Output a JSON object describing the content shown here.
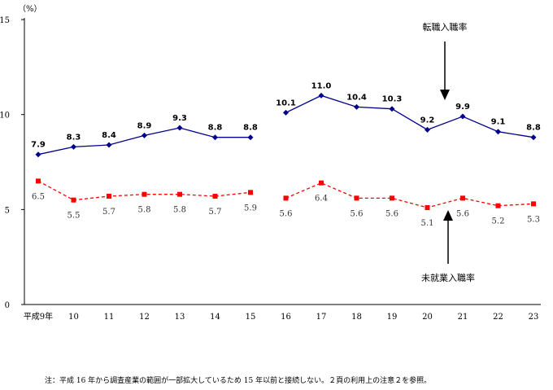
{
  "chart_data": {
    "type": "line",
    "unit_label": "（%）",
    "ylim": [
      0,
      15
    ],
    "y_ticks": [
      0,
      5,
      10,
      15
    ],
    "categories": [
      "平成9年",
      "10",
      "11",
      "12",
      "13",
      "14",
      "15",
      "16",
      "17",
      "18",
      "19",
      "20",
      "21",
      "22",
      "23"
    ],
    "series": [
      {
        "name": "転職入職率",
        "color": "#00008b",
        "line_style": "solid",
        "marker": "diamond",
        "label_style": "bold",
        "segments": [
          {
            "values": [
              7.9,
              8.3,
              8.4,
              8.9,
              9.3,
              8.8,
              8.8
            ]
          },
          {
            "values": [
              10.1,
              11.0,
              10.4,
              10.3,
              9.2,
              9.9,
              9.1,
              8.8
            ]
          }
        ],
        "labels": [
          "7.9",
          "8.3",
          "8.4",
          "8.9",
          "9.3",
          "8.8",
          "8.8",
          "10.1",
          "11.0",
          "10.4",
          "10.3",
          "9.2",
          "9.9",
          "9.1",
          "8.8"
        ]
      },
      {
        "name": "未就業入職率",
        "color": "#ff0000",
        "line_style": "dashed",
        "marker": "square",
        "label_style": "plain",
        "segments": [
          {
            "values": [
              6.5,
              5.5,
              5.7,
              5.8,
              5.8,
              5.7,
              5.9
            ]
          },
          {
            "values": [
              5.6,
              6.4,
              5.6,
              5.6,
              5.1,
              5.6,
              5.2,
              5.3
            ]
          }
        ],
        "labels": [
          "6.5",
          "5.5",
          "5.7",
          "5.8",
          "5.8",
          "5.7",
          "5.9",
          "5.6",
          "6.4",
          "5.6",
          "5.6",
          "5.1",
          "5.6",
          "5.2",
          "5.3"
        ]
      }
    ],
    "annotations": [
      {
        "text": "転職入職率",
        "arrow": "down"
      },
      {
        "text": "未就業入職率",
        "arrow": "up"
      }
    ],
    "footnote": "注：平成 16 年から調査産業の範囲が一部拡大しているため 15 年以前と接続しない。２頁の利用上の注意２を参照。"
  }
}
